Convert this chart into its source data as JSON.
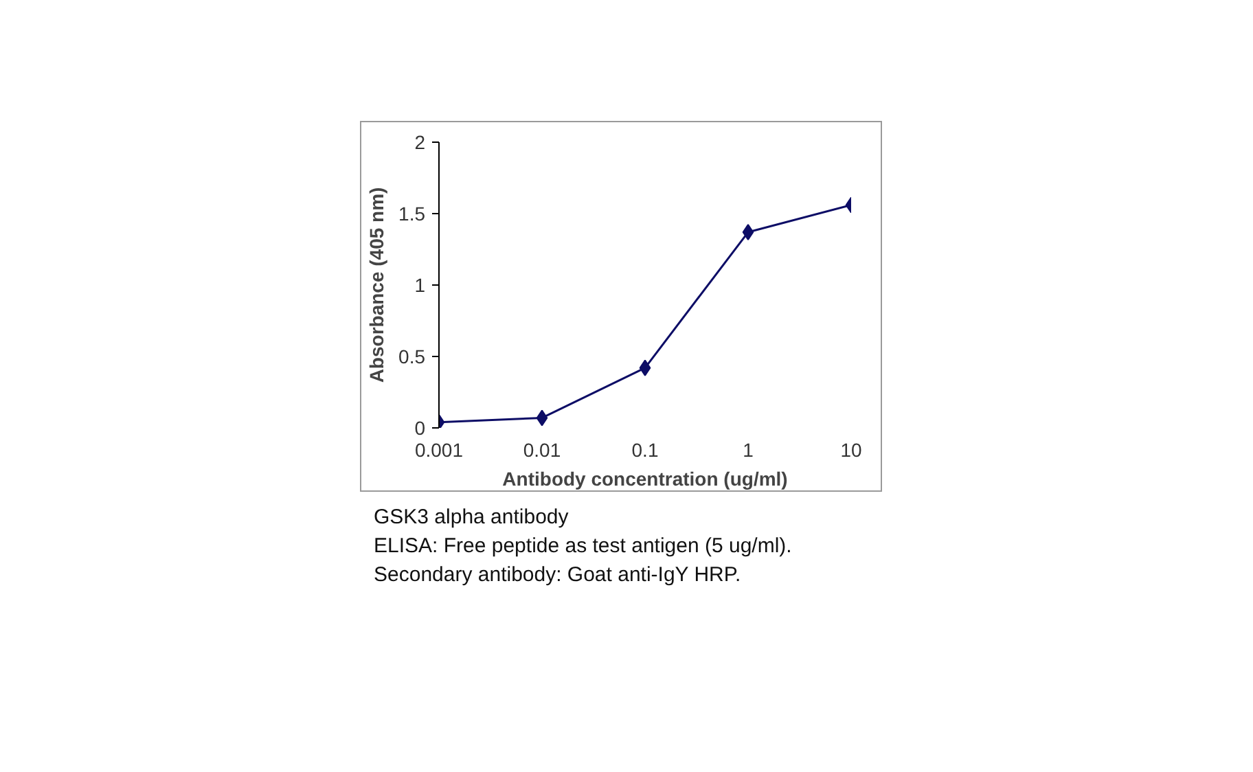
{
  "chart_data": {
    "type": "line",
    "xlabel": "Antibody concentration (ug/ml)",
    "ylabel": "Absorbance (405 nm)",
    "x": [
      0.001,
      0.01,
      0.1,
      1,
      10
    ],
    "series": [
      {
        "color": "#0d0d66",
        "values": [
          0.04,
          0.07,
          0.42,
          1.37,
          1.56
        ]
      }
    ],
    "log": "x",
    "xlim": [
      0.001,
      10
    ],
    "xticks": [
      0.001,
      0.01,
      0.1,
      1,
      10
    ],
    "ylim": [
      0,
      2
    ],
    "yticks": [
      0,
      0.5,
      1,
      1.5,
      2
    ],
    "grid": false,
    "marker": "diamond",
    "line_style": "solid",
    "annotations": [
      "GSK3 alpha antibody",
      "ELISA: Free peptide as test antigen (5 ug/ml).",
      "Secondary antibody: Goat anti-IgY HRP."
    ]
  }
}
